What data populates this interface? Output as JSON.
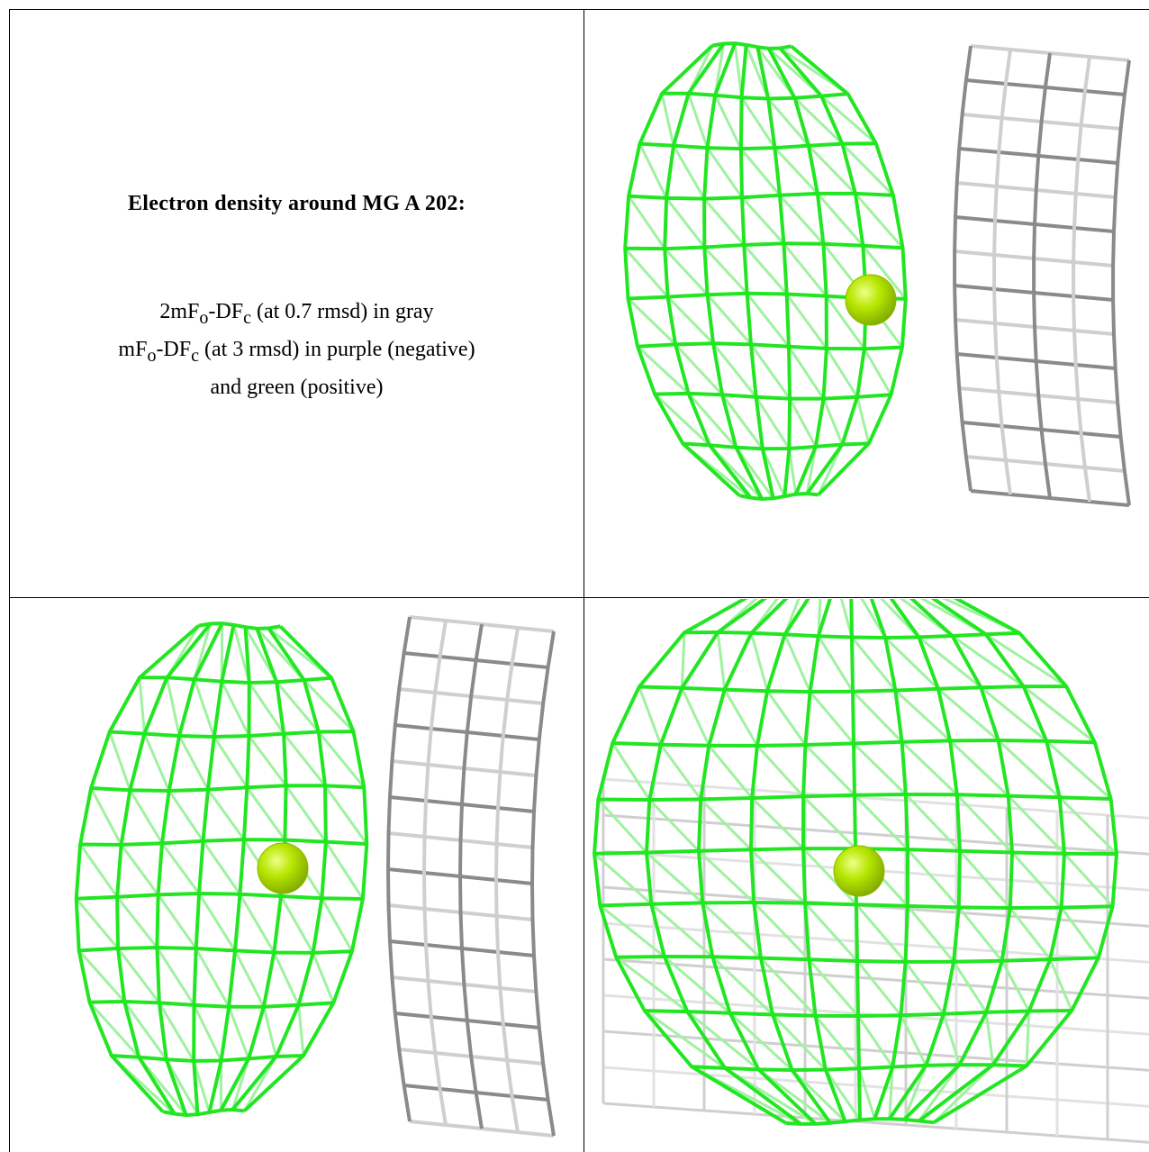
{
  "legend": {
    "title": "Electron density around MG A 202:",
    "line_1": {
      "pre": "2mF",
      "sub_o": "o",
      "mid": "-DF",
      "sub_c": "c",
      "post": " (at 0.7 rmsd) in gray"
    },
    "line_2": {
      "pre": "mF",
      "sub_o": "o",
      "mid": "-DF",
      "sub_c": "c",
      "post": " (at 3 rmsd) in purple (negative)"
    },
    "line_3": "and green (positive)"
  },
  "colors": {
    "positive_density": "#22e622",
    "positive_density_faded": "#9ff29f",
    "twomfo_density": "#8a8a8a",
    "twomfo_density_light": "#cfcfcf",
    "ion": "#b6e600",
    "ion_highlight": "#eeff88",
    "border": "#000000"
  },
  "panels": [
    {
      "name": "top-right-view",
      "ion": "MG A 202"
    },
    {
      "name": "bottom-left-view",
      "ion": "MG A 202"
    },
    {
      "name": "bottom-right-view",
      "ion": "MG A 202"
    }
  ]
}
